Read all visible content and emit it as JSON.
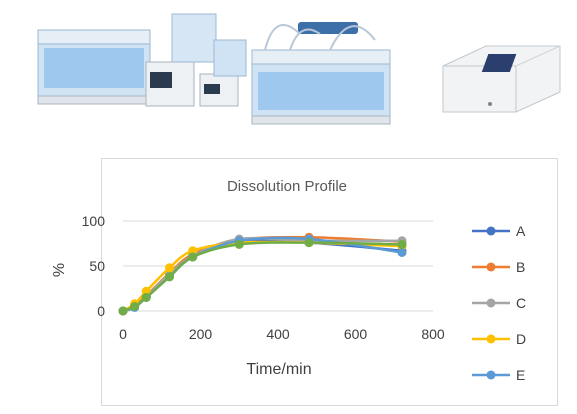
{
  "chart_data": {
    "type": "line",
    "title": "Dissolution Profile",
    "xlabel": "Time/min",
    "ylabel": "%",
    "xlim": [
      0,
      800
    ],
    "ylim": [
      0,
      100
    ],
    "x_ticks": [
      "0",
      "200",
      "400",
      "600",
      "800"
    ],
    "y_ticks": [
      "0",
      "50",
      "100"
    ],
    "grid": "horizontal",
    "legend_position": "right",
    "x": [
      0,
      30,
      60,
      120,
      180,
      300,
      480,
      720
    ],
    "series": [
      {
        "name": "A",
        "color": "#4472c4",
        "values": [
          0,
          5,
          16,
          40,
          62,
          77,
          76,
          67
        ]
      },
      {
        "name": "B",
        "color": "#ed7d31",
        "values": [
          0,
          6,
          17,
          42,
          63,
          79,
          82,
          77
        ]
      },
      {
        "name": "C",
        "color": "#a5a5a5",
        "values": [
          0,
          5,
          16,
          41,
          61,
          80,
          78,
          78
        ]
      },
      {
        "name": "D",
        "color": "#ffc000",
        "values": [
          0,
          8,
          22,
          48,
          67,
          76,
          76,
          72
        ]
      },
      {
        "name": "E",
        "color": "#5b9bd5",
        "values": [
          0,
          4,
          15,
          38,
          60,
          78,
          80,
          65
        ]
      },
      {
        "name": "",
        "color": "#70ad47",
        "values": [
          0,
          5,
          15,
          38,
          60,
          74,
          76,
          74
        ]
      }
    ]
  },
  "photos": {
    "left_icon": "dissolution-tester-equipment-photo",
    "right_icon": "uv-spectrophotometer-photo"
  }
}
